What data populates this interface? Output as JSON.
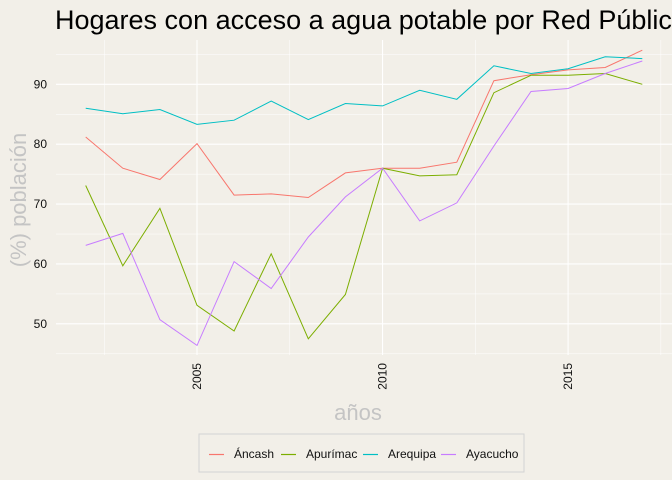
{
  "chart_data": {
    "type": "line",
    "title": "Hogares con acceso a agua potable por Red Pública (",
    "xlabel": "años",
    "ylabel": "(%) población",
    "x": [
      2002,
      2003,
      2004,
      2005,
      2006,
      2007,
      2008,
      2009,
      2010,
      2011,
      2012,
      2013,
      2014,
      2015,
      2016,
      2017
    ],
    "xlim": [
      2001.2,
      2017.8
    ],
    "ylim": [
      44.8,
      97.4
    ],
    "x_ticks": [
      2005,
      2010,
      2015
    ],
    "y_ticks": [
      50,
      60,
      70,
      80,
      90
    ],
    "grid": true,
    "legend_position": "bottom",
    "series": [
      {
        "name": "Áncash",
        "color": "#f8766d",
        "values": [
          81.2,
          76.0,
          74.1,
          80.1,
          71.5,
          71.7,
          71.1,
          75.2,
          76.0,
          76.0,
          77.0,
          90.6,
          91.6,
          92.4,
          92.8,
          95.7
        ]
      },
      {
        "name": "Apurímac",
        "color": "#7cae00",
        "values": [
          73.1,
          59.7,
          69.3,
          53.1,
          48.8,
          61.7,
          47.5,
          54.9,
          76.0,
          74.7,
          74.9,
          88.6,
          91.5,
          91.5,
          91.8,
          90.0
        ]
      },
      {
        "name": "Arequipa",
        "color": "#00bfc4",
        "values": [
          86.0,
          85.1,
          85.8,
          83.3,
          84.0,
          87.2,
          84.1,
          86.8,
          86.4,
          89.0,
          87.5,
          93.1,
          91.8,
          92.6,
          94.6,
          94.3
        ]
      },
      {
        "name": "Ayacucho",
        "color": "#c77cff",
        "values": [
          63.1,
          65.1,
          50.7,
          46.4,
          60.4,
          55.9,
          64.5,
          71.2,
          76.0,
          67.2,
          70.2,
          79.7,
          88.8,
          89.3,
          91.8,
          93.9
        ]
      }
    ]
  }
}
